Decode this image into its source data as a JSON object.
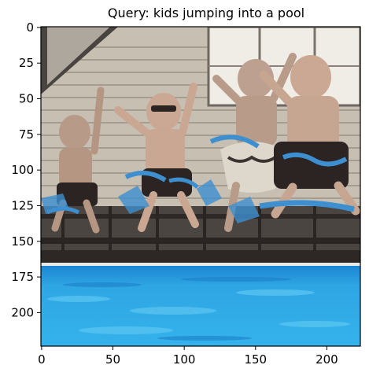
{
  "figure": {
    "title": "Query: kids jumping into a pool"
  },
  "image": {
    "subject": "kids jumping into a pool",
    "colors": {
      "sky_siding": "#c9c2b4",
      "siding_dark": "#8d8578",
      "deck": "#3a3431",
      "pool_light": "#36b4ea",
      "pool_dark": "#1479c4",
      "skin": "#caa894",
      "shorts_dark": "#2b2422",
      "accent_blue": "#3d8fd0"
    }
  },
  "axes": {
    "x_ticks": [
      "0",
      "50",
      "100",
      "150",
      "200"
    ],
    "y_ticks": [
      "0",
      "25",
      "50",
      "75",
      "100",
      "125",
      "150",
      "175",
      "200"
    ],
    "x_tick_values": [
      0,
      50,
      100,
      150,
      200
    ],
    "y_tick_values": [
      0,
      25,
      50,
      75,
      100,
      125,
      150,
      175,
      200
    ],
    "xlim": [
      -0.5,
      223.5
    ],
    "ylim": [
      223.5,
      -0.5
    ]
  }
}
